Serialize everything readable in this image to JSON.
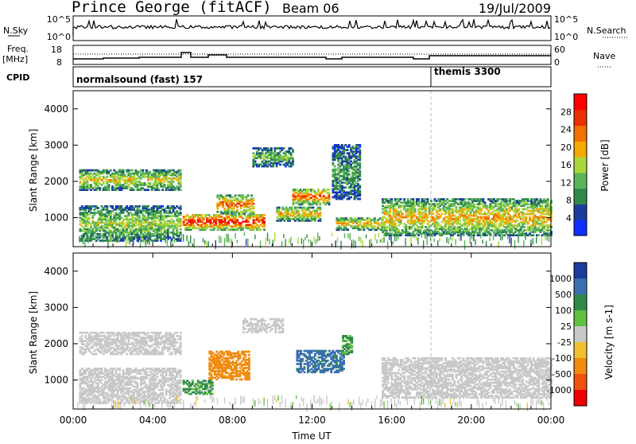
{
  "header": {
    "station": "Prince George (fitACF)",
    "beam": "Beam 06",
    "date": "19/Jul/2009"
  },
  "summary": {
    "nsky_label": "N.Sky",
    "nsky_ticks": [
      "10^5",
      "10^0"
    ],
    "nsearch_label": "N.Search",
    "nsearch_ticks": [
      "10^5",
      "10^0"
    ],
    "freq_label": "Freq.",
    "freq_unit": "[MHz]",
    "freq_ticks": [
      "18",
      "8"
    ],
    "nave_label": "Nave",
    "nave_ticks": [
      "60",
      "0"
    ],
    "cpid_label": "CPID",
    "cpid_segments": [
      {
        "label": "normalsound (fast) 157",
        "start_hour": 0
      },
      {
        "label": "themis 3300",
        "start_hour": 18
      }
    ]
  },
  "colors": {
    "power_scale": [
      "#1030ff",
      "#1a3c9c",
      "#2f8a4a",
      "#5ab45a",
      "#a8d83a",
      "#f5a800",
      "#f07000",
      "#e83000",
      "#ff0000"
    ],
    "velocity_scale": [
      "#1a3c9c",
      "#3a6fb0",
      "#2f8a4a",
      "#60c040",
      "#c8c8c8",
      "#f0c030",
      "#f08c10",
      "#f05010",
      "#f00000"
    ]
  },
  "chart_data": [
    {
      "type": "heatmap",
      "name": "power",
      "ylabel": "Slant Range [km]",
      "yticks": [
        "1000",
        "2000",
        "3000",
        "4000"
      ],
      "ylim": [
        200,
        4500
      ],
      "xlim_hours": [
        0,
        24
      ],
      "colorbar_label": "Power [dB]",
      "colorbar_ticks": [
        "4",
        "8",
        "12",
        "16",
        "20",
        "24",
        "28"
      ],
      "colorbar_range": [
        0,
        32
      ],
      "echo_bands": [
        {
          "t": [
            0.3,
            5.4
          ],
          "r": [
            1750,
            2300
          ],
          "v": 16
        },
        {
          "t": [
            0.3,
            5.4
          ],
          "r": [
            350,
            1300
          ],
          "v": 14
        },
        {
          "t": [
            5.5,
            9.6
          ],
          "r": [
            650,
            1100
          ],
          "v": 26
        },
        {
          "t": [
            7.2,
            9.0
          ],
          "r": [
            1100,
            1600
          ],
          "v": 22
        },
        {
          "t": [
            10.2,
            12.4
          ],
          "r": [
            900,
            1300
          ],
          "v": 18
        },
        {
          "t": [
            11.0,
            12.8
          ],
          "r": [
            1350,
            1800
          ],
          "v": 22
        },
        {
          "t": [
            13.2,
            15.5
          ],
          "r": [
            650,
            1000
          ],
          "v": 18
        },
        {
          "t": [
            15.5,
            24.0
          ],
          "r": [
            500,
            1500
          ],
          "v": 18
        },
        {
          "t": [
            9.0,
            11.0
          ],
          "r": [
            2400,
            2900
          ],
          "v": 12
        },
        {
          "t": [
            13.0,
            14.4
          ],
          "r": [
            1500,
            3000
          ],
          "v": 10
        }
      ]
    },
    {
      "type": "heatmap",
      "name": "velocity",
      "ylabel": "Slant Range [km]",
      "yticks": [
        "1000",
        "2000",
        "3000",
        "4000"
      ],
      "ylim": [
        200,
        4500
      ],
      "xlim_hours": [
        0,
        24
      ],
      "xlabel": "Time UT",
      "xticks": [
        "00:00",
        "04:00",
        "08:00",
        "12:00",
        "16:00",
        "20:00",
        "00:00"
      ],
      "colorbar_label": "Velocity [m s-1]",
      "colorbar_ticks": [
        "1000",
        "500",
        "100",
        "25",
        "-25",
        "-100",
        "-500",
        "-1000"
      ],
      "echo_bands": [
        {
          "t": [
            0.3,
            5.4
          ],
          "r": [
            1700,
            2300
          ],
          "v": 0
        },
        {
          "t": [
            0.3,
            5.4
          ],
          "r": [
            350,
            1300
          ],
          "v": 0
        },
        {
          "t": [
            6.8,
            8.8
          ],
          "r": [
            1000,
            1800
          ],
          "v": -300
        },
        {
          "t": [
            11.2,
            13.6
          ],
          "r": [
            1200,
            1800
          ],
          "v": 600
        },
        {
          "t": [
            13.5,
            14.0
          ],
          "r": [
            1700,
            2200
          ],
          "v": 200
        },
        {
          "t": [
            5.5,
            7.0
          ],
          "r": [
            600,
            1000
          ],
          "v": 150
        },
        {
          "t": [
            8.5,
            10.5
          ],
          "r": [
            2300,
            2700
          ],
          "v": 0
        },
        {
          "t": [
            15.5,
            24.0
          ],
          "r": [
            500,
            1600
          ],
          "v": 0
        }
      ]
    }
  ]
}
